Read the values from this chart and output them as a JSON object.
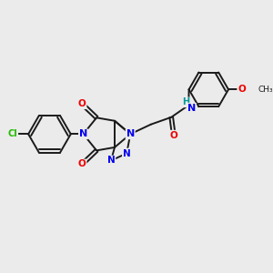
{
  "bg_color": "#ebebeb",
  "bond_color": "#1a1a1a",
  "bond_width": 1.4,
  "atom_colors": {
    "N": "#0000ee",
    "O": "#ee0000",
    "Cl": "#22bb00",
    "H": "#009999"
  },
  "figsize": [
    3.0,
    3.0
  ],
  "dpi": 100
}
